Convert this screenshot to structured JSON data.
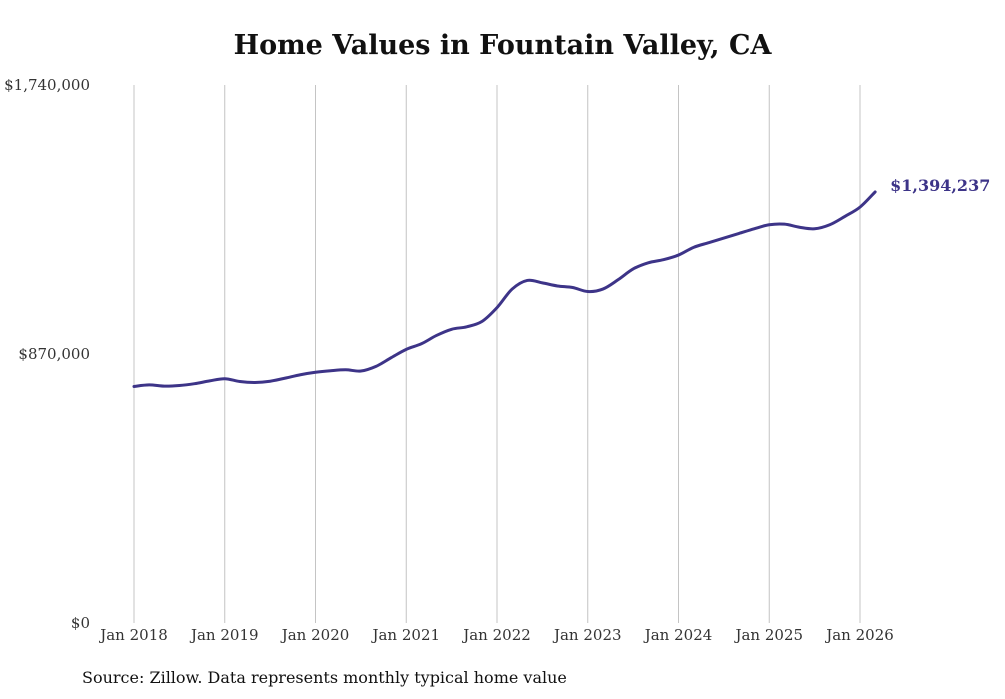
{
  "chart_data": {
    "type": "line",
    "title": "Home Values in Fountain Valley, CA",
    "source": "Source: Zillow. Data represents monthly typical home value",
    "ylim": [
      0,
      1740000
    ],
    "y_ticks": [
      {
        "value": 0,
        "label": "$0"
      },
      {
        "value": 870000,
        "label": "$870,000"
      },
      {
        "value": 1740000,
        "label": "$1,740,000"
      }
    ],
    "x_ticks": [
      {
        "value": "2018-01",
        "label": "Jan 2018"
      },
      {
        "value": "2019-01",
        "label": "Jan 2019"
      },
      {
        "value": "2020-01",
        "label": "Jan 2020"
      },
      {
        "value": "2021-01",
        "label": "Jan 2021"
      },
      {
        "value": "2022-01",
        "label": "Jan 2022"
      },
      {
        "value": "2023-01",
        "label": "Jan 2023"
      },
      {
        "value": "2024-01",
        "label": "Jan 2024"
      },
      {
        "value": "2025-01",
        "label": "Jan 2025"
      },
      {
        "value": "2026-01",
        "label": "Jan 2026"
      }
    ],
    "grid": "vertical",
    "end_label": "$1,394,237",
    "line_color": "#3d3488",
    "series": [
      {
        "x": [
          "2018-01",
          "2018-03",
          "2018-05",
          "2018-07",
          "2018-09",
          "2018-11",
          "2019-01",
          "2019-03",
          "2019-05",
          "2019-07",
          "2019-09",
          "2019-11",
          "2020-01",
          "2020-03",
          "2020-05",
          "2020-07",
          "2020-09",
          "2020-11",
          "2021-01",
          "2021-03",
          "2021-05",
          "2021-07",
          "2021-09",
          "2021-11",
          "2022-01",
          "2022-03",
          "2022-05",
          "2022-07",
          "2022-09",
          "2022-11",
          "2023-01",
          "2023-03",
          "2023-05",
          "2023-07",
          "2023-09",
          "2023-11",
          "2024-01",
          "2024-03",
          "2024-05",
          "2024-07",
          "2024-09",
          "2024-11",
          "2025-01",
          "2025-03",
          "2025-05",
          "2025-07",
          "2025-09",
          "2025-11",
          "2026-01",
          "2026-03"
        ],
        "values": [
          765000,
          770000,
          766000,
          768000,
          774000,
          783000,
          790000,
          781000,
          778000,
          782000,
          792000,
          803000,
          811000,
          816000,
          819000,
          815000,
          830000,
          858000,
          885000,
          903000,
          930000,
          950000,
          958000,
          975000,
          1020000,
          1080000,
          1108000,
          1100000,
          1090000,
          1085000,
          1072000,
          1080000,
          1110000,
          1145000,
          1165000,
          1175000,
          1190000,
          1215000,
          1230000,
          1245000,
          1260000,
          1275000,
          1288000,
          1290000,
          1280000,
          1275000,
          1288000,
          1315000,
          1345000,
          1394237
        ]
      }
    ]
  }
}
